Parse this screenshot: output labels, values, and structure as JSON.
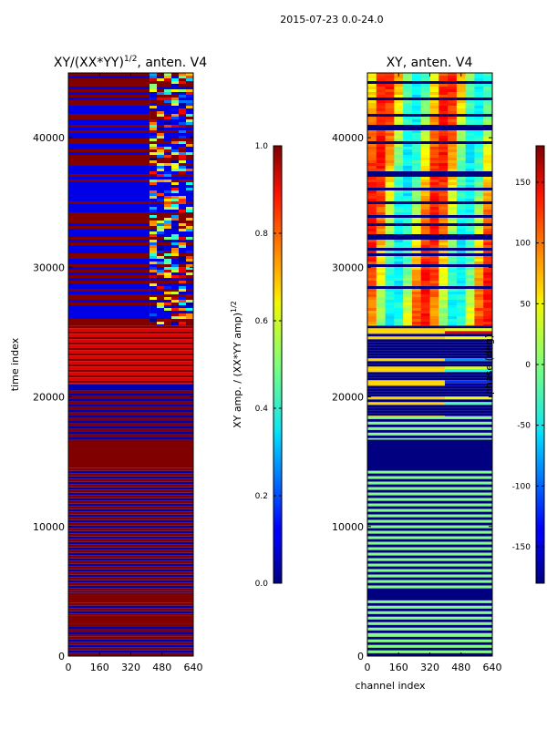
{
  "suptitle": "2015-07-23 0.0-24.0",
  "chart_data": [
    {
      "type": "heatmap",
      "title": "XY/(XX*YY)^{1/2}, anten. V4",
      "title_main": "XY/(XX*YY)",
      "title_sup": "1/2",
      "title_tail": ", anten. V4",
      "xlabel": "",
      "ylabel": "time index",
      "xlim": [
        0,
        640
      ],
      "ylim": [
        0,
        45000
      ],
      "xticks": [
        0,
        160,
        320,
        480,
        640
      ],
      "yticks": [
        0,
        10000,
        20000,
        30000,
        40000
      ],
      "colormap": "jet",
      "colorbar": {
        "label": "XY amp. / (XX*YY amp)^{1/2}",
        "label_main": "XY amp. / (XX*YY amp)",
        "label_sup": "1/2",
        "range": [
          0.0,
          1.0
        ],
        "ticks": [
          0.0,
          0.2,
          0.4,
          0.6,
          0.8,
          1.0
        ],
        "tick_labels": [
          "0.0",
          "0.2",
          "0.4",
          "0.6",
          "0.8",
          "1.0"
        ]
      },
      "time_bands": [
        {
          "from": 0,
          "to": 1500,
          "pattern": "striped",
          "value": 1.0,
          "alt_value": 0.05
        },
        {
          "from": 1500,
          "to": 2500,
          "pattern": "striped",
          "value": 1.0,
          "alt_value": 0.05
        },
        {
          "from": 2500,
          "to": 3100,
          "pattern": "solid",
          "value": 1.0
        },
        {
          "from": 3100,
          "to": 4100,
          "pattern": "striped",
          "value": 1.0,
          "alt_value": 0.05
        },
        {
          "from": 4100,
          "to": 4900,
          "pattern": "solid",
          "value": 1.0
        },
        {
          "from": 4900,
          "to": 14500,
          "pattern": "striped",
          "value": 1.0,
          "alt_value": 0.05
        },
        {
          "from": 14500,
          "to": 16700,
          "pattern": "solid",
          "value": 1.0
        },
        {
          "from": 16700,
          "to": 20500,
          "pattern": "striped",
          "value": 1.0,
          "alt_value": 0.05
        },
        {
          "from": 20500,
          "to": 21000,
          "pattern": "solid",
          "value": 0.05
        },
        {
          "from": 21000,
          "to": 25500,
          "pattern": "striped",
          "value": 1.0,
          "alt_value": 0.9
        },
        {
          "from": 25500,
          "to": 45000,
          "pattern": "noisy",
          "value": 0.1,
          "alt_value": 1.0
        }
      ]
    },
    {
      "type": "heatmap",
      "title": "XY, anten. V4",
      "xlabel": "channel index",
      "ylabel": "",
      "xlim": [
        0,
        640
      ],
      "ylim": [
        0,
        45000
      ],
      "xticks": [
        0,
        160,
        320,
        480,
        640
      ],
      "yticks": [
        0,
        10000,
        20000,
        30000,
        40000
      ],
      "colormap": "jet",
      "colorbar": {
        "label": "phase (deg)",
        "range": [
          -180,
          180
        ],
        "ticks": [
          -150,
          -100,
          -50,
          0,
          50,
          100,
          150
        ],
        "tick_labels": [
          "-150",
          "-100",
          "-50",
          "0",
          "50",
          "100",
          "150"
        ]
      },
      "time_bands": [
        {
          "from": 0,
          "to": 1700,
          "pattern": "striped",
          "value": 0,
          "alt_value": -180
        },
        {
          "from": 1700,
          "to": 4300,
          "pattern": "striped",
          "value": 0,
          "alt_value": -180
        },
        {
          "from": 4300,
          "to": 5200,
          "pattern": "solid",
          "value": -180
        },
        {
          "from": 5200,
          "to": 14300,
          "pattern": "striped",
          "value": 0,
          "alt_value": -180
        },
        {
          "from": 14300,
          "to": 16700,
          "pattern": "solid",
          "value": -180
        },
        {
          "from": 16700,
          "to": 18500,
          "pattern": "striped",
          "value": 0,
          "alt_value": -180
        },
        {
          "from": 18500,
          "to": 25500,
          "pattern": "mixed",
          "value": -180,
          "alt_value": 60
        },
        {
          "from": 25500,
          "to": 45000,
          "pattern": "fringes",
          "value": 40,
          "alt_value": -180
        }
      ]
    }
  ]
}
